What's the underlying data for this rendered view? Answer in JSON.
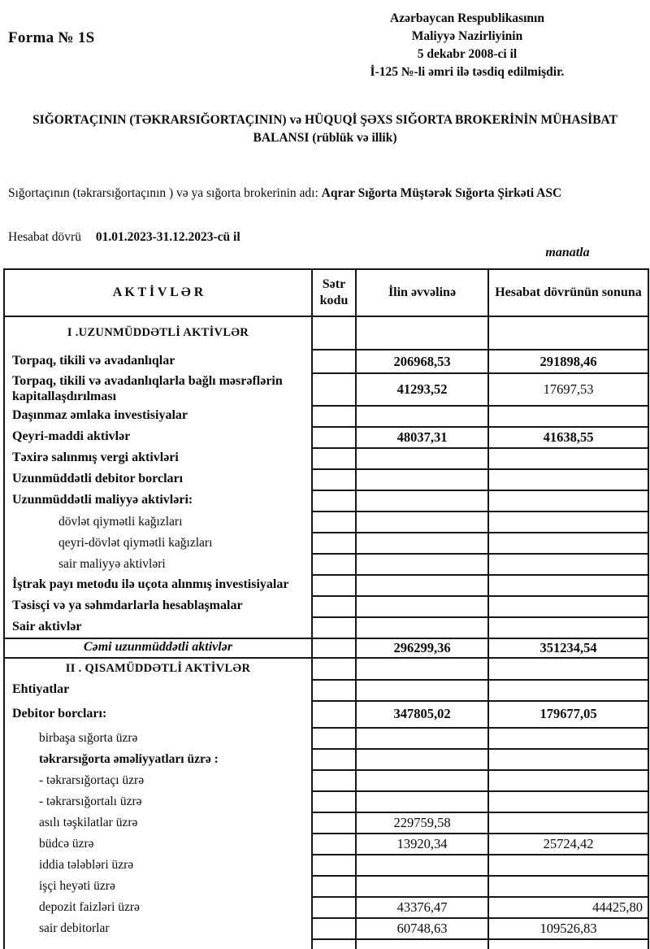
{
  "header": {
    "form_label": "Forma № 1S",
    "approval_lines": [
      "Azərbaycan Respublikasının",
      "Maliyyə Nazirliyinin",
      "5 dekabr 2008-ci il",
      "İ-125 №-li əmri ilə təsdiq edilmişdir."
    ],
    "title": "SIĞORTAÇININ (TƏKRARSIĞORTAÇININ) və HÜQUQİ ŞƏXS SIĞORTA BROKERİNİN MÜHASİBAT BALANSI (rüblük və illik)",
    "insurer_label": "Sığortaçının (təkrarsığortaçının ) və ya sığorta brokerinin adı:",
    "insurer_name": "Aqrar Sığorta Müştərək Sığorta Şirkəti ASC",
    "period_label": "Hesabat dövrü",
    "period_value": "01.01.2023-31.12.2023-cü il",
    "currency_note": "manatla"
  },
  "table": {
    "columns": [
      "A K T İ V L Ə R",
      "Sətr kodu",
      "İlin əvvəlinə",
      "Hesabat dövrünün sonuna"
    ],
    "rows": [
      {
        "style": "section",
        "label": "I .UZUNMÜDDƏTLİ AKTİVLƏR",
        "code": "",
        "v1": "",
        "v2": ""
      },
      {
        "style": "item",
        "label": "Torpaq, tikili və avadanlıqlar",
        "code": "",
        "v1": "206968,53",
        "v1b": true,
        "v2": "291898,46",
        "v2b": true
      },
      {
        "style": "item",
        "label": "Torpaq, tikili və avadanlıqlarla bağlı məsrəflərin kapitallaşdırılması",
        "code": "",
        "v1": "41293,52",
        "v1b": true,
        "v2": "17697,53",
        "v2b": false
      },
      {
        "style": "item",
        "label": "Daşınmaz əmlaka investisiyalar",
        "code": "",
        "v1": "",
        "v2": ""
      },
      {
        "style": "item",
        "label": "Qeyri-maddi aktivlər",
        "code": "",
        "v1": "48037,31",
        "v1b": true,
        "v2": "41638,55",
        "v2b": true
      },
      {
        "style": "item",
        "label": "Təxirə salınmış vergi aktivləri",
        "code": "",
        "v1": "",
        "v2": ""
      },
      {
        "style": "item",
        "label": "Uzunmüddətli debitor borcları",
        "code": "",
        "v1": "",
        "v2": ""
      },
      {
        "style": "item",
        "label": "Uzunmüddətli maliyyə aktivləri:",
        "code": "",
        "v1": "",
        "v2": ""
      },
      {
        "style": "sub1",
        "label": "dövlət qiymətli kağızları",
        "code": "",
        "v1": "",
        "v2": ""
      },
      {
        "style": "sub1",
        "label": "qeyri-dövlət qiymətli kağızları",
        "code": "",
        "v1": "",
        "v2": ""
      },
      {
        "style": "sub1",
        "label": "sair maliyyə aktivləri",
        "code": "",
        "v1": "",
        "v2": ""
      },
      {
        "style": "item",
        "label": "İştrak payı metodu ilə uçota alınmış investisiyalar",
        "code": "",
        "v1": "",
        "v2": ""
      },
      {
        "style": "item",
        "label": "Təsisçi və ya səhmdarlarla hesablaşmalar",
        "code": "",
        "v1": "",
        "v2": ""
      },
      {
        "style": "item",
        "label": "Sair aktivlər",
        "code": "",
        "v1": "",
        "v2": ""
      },
      {
        "style": "total",
        "label": "Cəmi uzunmüddətli aktivlər",
        "code": "",
        "v1": "296299,36",
        "v1b": true,
        "v2": "351234,54",
        "v2b": true
      },
      {
        "style": "section",
        "label": "II . QISAMÜDDƏTLİ AKTİVLƏR",
        "code": "",
        "v1": "",
        "v2": ""
      },
      {
        "style": "item",
        "label": "Ehtiyatlar",
        "code": "",
        "v1": "",
        "v2": ""
      },
      {
        "style": "item",
        "label": "Debitor borcları:",
        "code": "",
        "v1": "347805,02",
        "v1b": true,
        "v2": "179677,05",
        "v2b": true
      },
      {
        "style": "sub2",
        "label": "birbaşa sığorta üzrə",
        "code": "",
        "v1": "",
        "v2": ""
      },
      {
        "style": "sub2bold",
        "label": "təkrarsığorta əməliyyatları üzrə :",
        "code": "",
        "v1": "",
        "v2": ""
      },
      {
        "style": "sub2",
        "label": "- təkrarsığortaçı üzrə",
        "code": "",
        "v1": "",
        "v2": ""
      },
      {
        "style": "sub2",
        "label": "- təkrarsığortalı üzrə",
        "code": "",
        "v1": "",
        "v2": ""
      },
      {
        "style": "sub2",
        "label": "asılı təşkilatlar üzrə",
        "code": "",
        "v1": "229759,58",
        "v2": ""
      },
      {
        "style": "sub2",
        "label": "büdcə üzrə",
        "code": "",
        "v1": "13920,34",
        "v2": "25724,42"
      },
      {
        "style": "sub2",
        "label": "iddia tələbləri üzrə",
        "code": "",
        "v1": "",
        "v2": ""
      },
      {
        "style": "sub2",
        "label": "işçi heyəti üzrə",
        "code": "",
        "v1": "",
        "v2": ""
      },
      {
        "style": "sub2",
        "label": "depozit faizləri üzrə",
        "code": "",
        "v1": "43376,47",
        "v2": "44425,80",
        "v2align": "right"
      },
      {
        "style": "sub2",
        "label": "sair debitorlar",
        "code": "",
        "v1": "60748,63",
        "v2": "109526,83"
      },
      {
        "style": "stub",
        "label": "",
        "code": "",
        "v1": "",
        "v2": ""
      }
    ]
  }
}
